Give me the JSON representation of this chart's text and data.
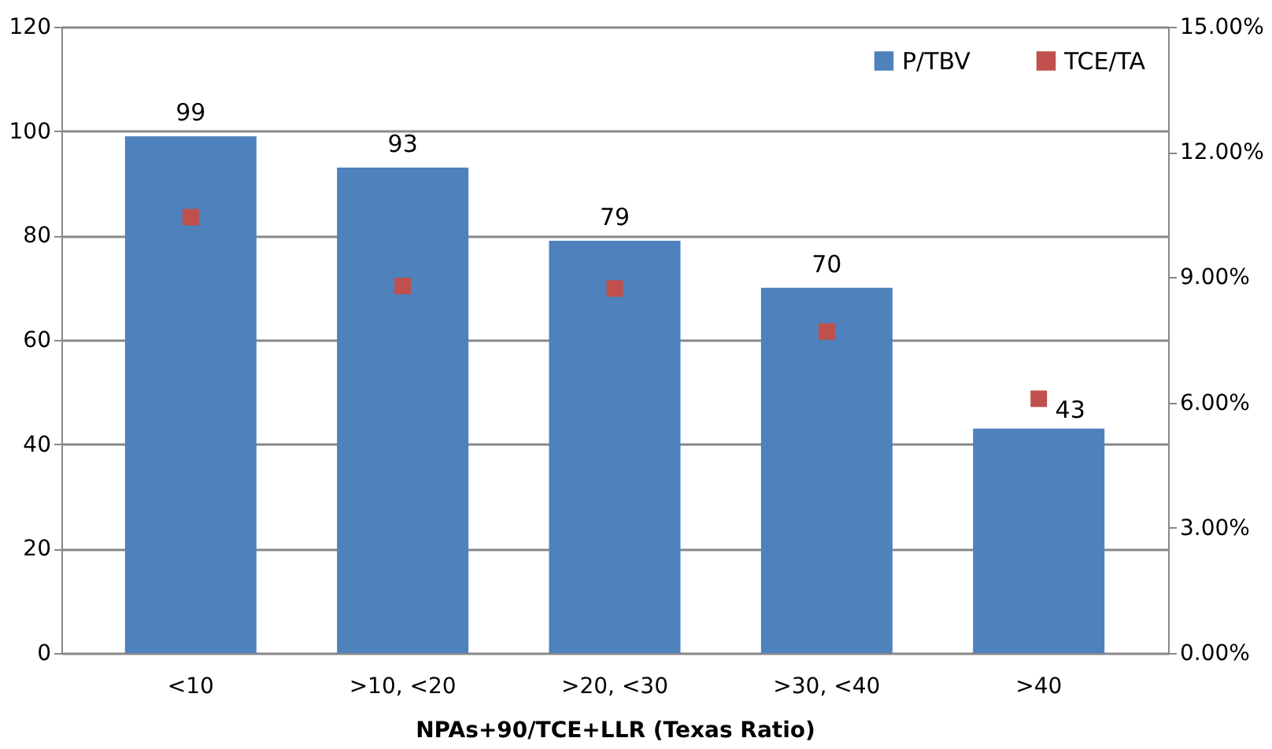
{
  "chart_data": {
    "type": "bar",
    "xlabel": "NPAs+90/TCE+LLR (Texas Ratio)",
    "categories": [
      "<10",
      ">10, <20",
      ">20, <30",
      ">30, <40",
      ">40"
    ],
    "series": [
      {
        "name": "P/TBV",
        "color": "#4f81bd",
        "values": [
          99,
          93,
          79,
          70,
          43
        ],
        "value_labels": [
          "99",
          "93",
          "79",
          "70",
          "43"
        ]
      },
      {
        "name": "TCE/TA",
        "type": "scatter",
        "axis": "y2",
        "color": "#c0504d",
        "values": [
          10.44,
          8.79,
          8.73,
          7.7,
          6.09
        ]
      }
    ],
    "marker": "square",
    "ylim": [
      0,
      120
    ],
    "yticks": [
      0,
      20,
      40,
      60,
      80,
      100,
      120
    ],
    "y2lim": [
      0,
      15
    ],
    "y2ticks": [
      {
        "value": 0,
        "label": "0.00%"
      },
      {
        "value": 3,
        "label": "3.00%"
      },
      {
        "value": 6,
        "label": "6.00%"
      },
      {
        "value": 9,
        "label": "9.00%"
      },
      {
        "value": 12,
        "label": "12.00%"
      },
      {
        "value": 15,
        "label": "15.00%"
      }
    ],
    "grid": "y",
    "legend": "top right"
  }
}
